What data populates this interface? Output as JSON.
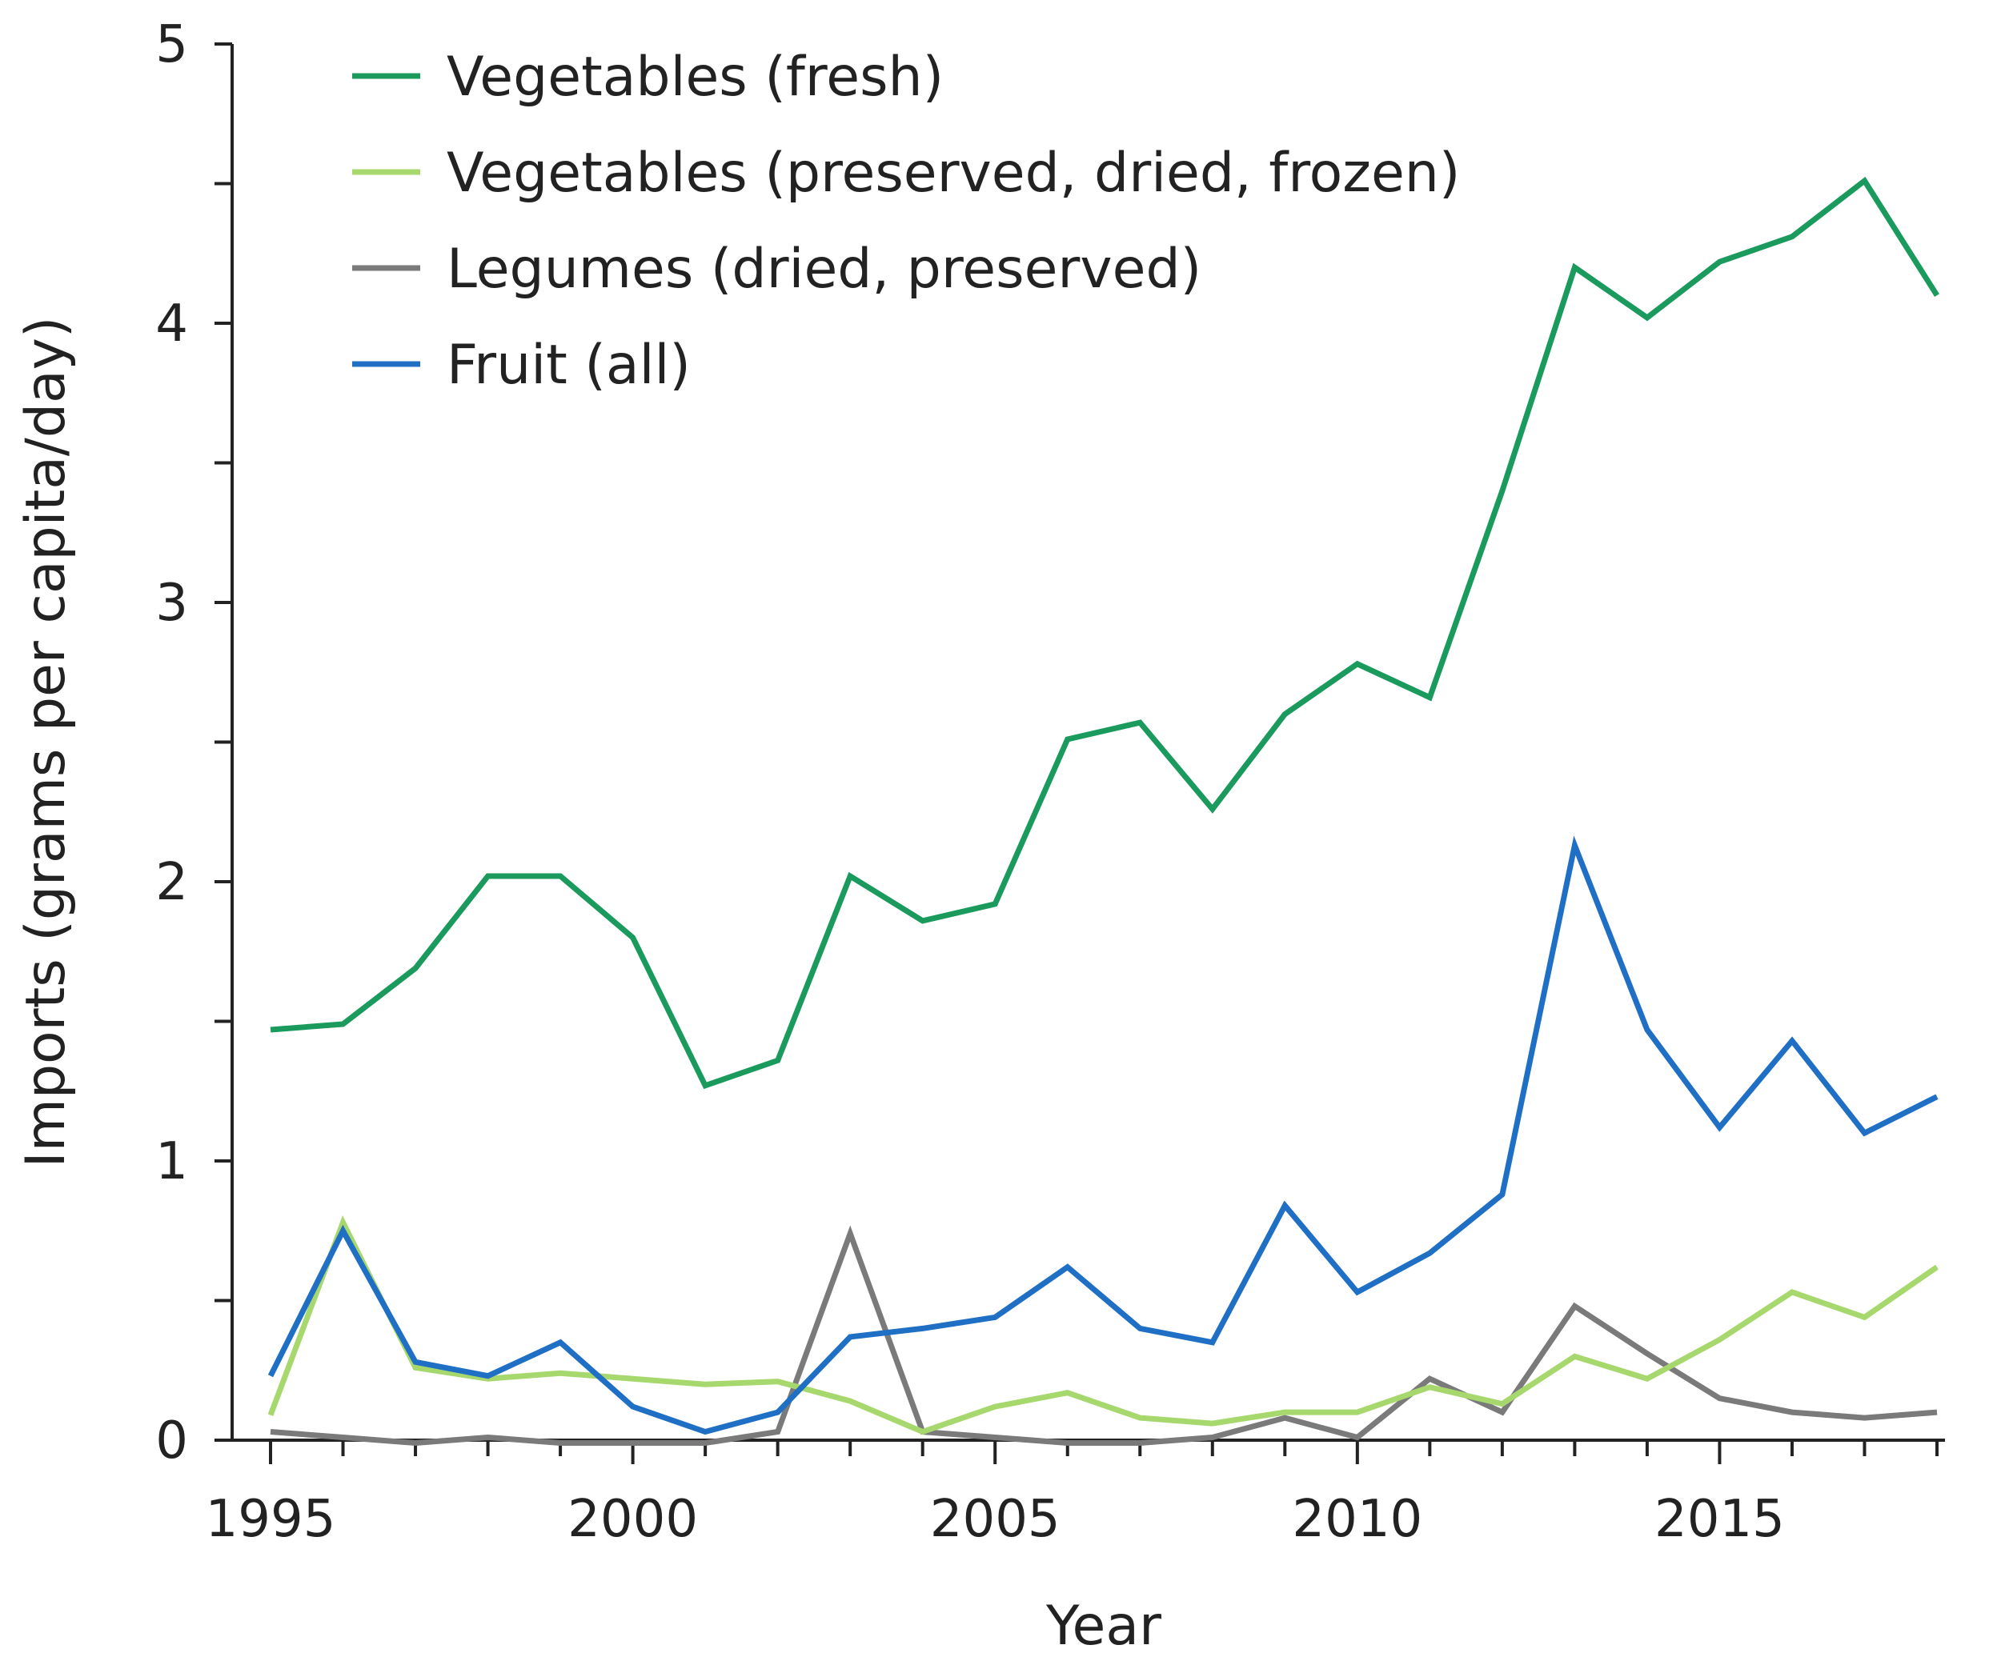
{
  "chart_data": {
    "type": "line",
    "title": "",
    "xlabel": "Year",
    "ylabel": "Imports (grams per capita/day)",
    "xlim": [
      1995,
      2018
    ],
    "ylim": [
      0,
      5
    ],
    "x": [
      1995,
      1996,
      1997,
      1998,
      1999,
      2000,
      2001,
      2002,
      2003,
      2004,
      2005,
      2006,
      2007,
      2008,
      2009,
      2010,
      2011,
      2012,
      2013,
      2014,
      2015,
      2016,
      2017,
      2018
    ],
    "x_ticks": [
      1995,
      2000,
      2005,
      2010,
      2015
    ],
    "y_ticks": [
      0,
      1,
      2,
      3,
      4,
      5
    ],
    "y_minor_ticks": [
      0.5,
      1.5,
      2.5,
      3.5,
      4.5
    ],
    "legend_position": "top-left",
    "series": [
      {
        "name": "Vegetables (fresh)",
        "color": "#1a9a5c",
        "values": [
          1.47,
          1.49,
          1.69,
          2.02,
          2.02,
          1.8,
          1.27,
          1.36,
          2.02,
          1.86,
          1.92,
          2.51,
          2.57,
          2.26,
          2.6,
          2.78,
          2.66,
          3.4,
          4.2,
          4.02,
          4.22,
          4.31,
          4.51,
          4.1
        ]
      },
      {
        "name": "Vegetables (preserved, dried, frozen)",
        "color": "#a7d86e",
        "values": [
          0.09,
          0.78,
          0.26,
          0.22,
          0.24,
          0.22,
          0.2,
          0.21,
          0.14,
          0.03,
          0.12,
          0.17,
          0.08,
          0.06,
          0.1,
          0.1,
          0.19,
          0.13,
          0.3,
          0.22,
          0.36,
          0.53,
          0.44,
          0.62
        ]
      },
      {
        "name": "Legumes (dried, preserved)",
        "color": "#7a7a7a",
        "values": [
          0.03,
          0.01,
          -0.01,
          0.01,
          -0.01,
          -0.01,
          -0.01,
          0.03,
          0.74,
          0.03,
          0.01,
          -0.01,
          -0.01,
          0.01,
          0.08,
          0.01,
          0.22,
          0.1,
          0.48,
          0.31,
          0.15,
          0.1,
          0.08,
          0.1
        ]
      },
      {
        "name": "Fruit (all)",
        "color": "#1f6fc5",
        "values": [
          0.23,
          0.75,
          0.28,
          0.23,
          0.35,
          0.12,
          0.03,
          0.1,
          0.37,
          0.4,
          0.44,
          0.62,
          0.4,
          0.35,
          0.84,
          0.53,
          0.67,
          0.88,
          2.13,
          1.47,
          1.12,
          1.43,
          1.1,
          1.23
        ]
      }
    ]
  }
}
